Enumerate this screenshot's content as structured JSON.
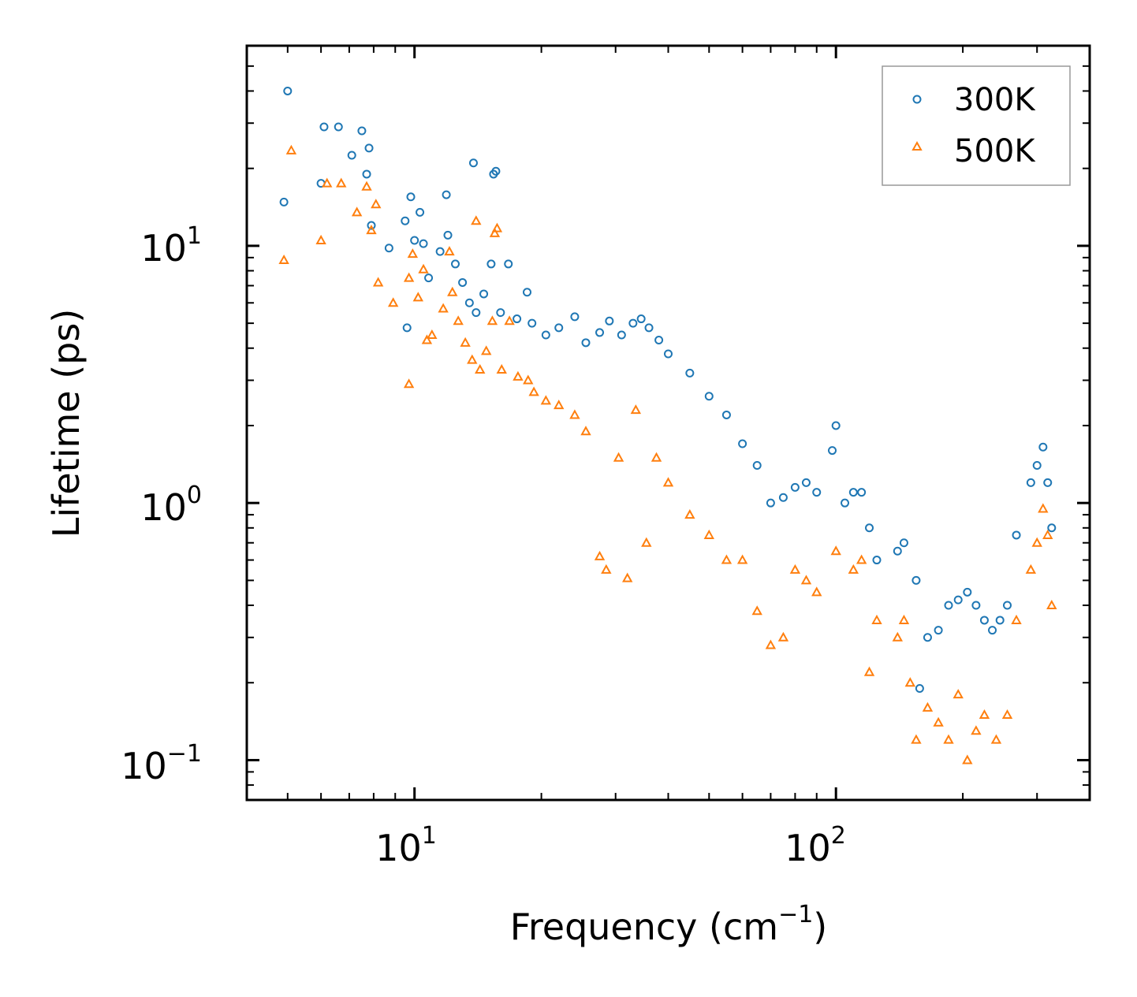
{
  "chart_data": {
    "type": "scatter",
    "title": "",
    "xlabel": "Frequency (cm",
    "xlabel_exp": "−1",
    "xlabel_tail": ")",
    "ylabel": "Lifetime (ps)",
    "xscale": "log",
    "yscale": "log",
    "xlim": [
      4.0,
      400.0
    ],
    "ylim": [
      0.07,
      60.0
    ],
    "x_ticks": [
      {
        "value": 10,
        "base": "10",
        "exp": "1"
      },
      {
        "value": 100,
        "base": "10",
        "exp": "2"
      }
    ],
    "y_ticks": [
      {
        "value": 0.1,
        "base": "10",
        "exp": "−1"
      },
      {
        "value": 1,
        "base": "10",
        "exp": "0"
      },
      {
        "value": 10,
        "base": "10",
        "exp": "1"
      }
    ],
    "legend_position": "top-right",
    "colors": {
      "300K": "#1f77b4",
      "500K": "#ff7f0e"
    },
    "series": [
      {
        "name": "300K",
        "marker": "circle",
        "color": "#1f77b4",
        "points": [
          [
            4.9,
            14.8
          ],
          [
            5.0,
            40.0
          ],
          [
            6.0,
            17.5
          ],
          [
            6.1,
            29.0
          ],
          [
            6.6,
            29.0
          ],
          [
            7.1,
            22.5
          ],
          [
            7.5,
            28.0
          ],
          [
            7.7,
            19.0
          ],
          [
            7.8,
            24.0
          ],
          [
            7.9,
            12.0
          ],
          [
            8.7,
            9.8
          ],
          [
            9.5,
            12.5
          ],
          [
            9.6,
            4.8
          ],
          [
            9.8,
            15.5
          ],
          [
            10.0,
            10.5
          ],
          [
            10.3,
            13.5
          ],
          [
            10.5,
            10.2
          ],
          [
            10.8,
            7.5
          ],
          [
            11.5,
            9.5
          ],
          [
            11.9,
            15.8
          ],
          [
            12.0,
            11.0
          ],
          [
            12.5,
            8.5
          ],
          [
            13.0,
            7.2
          ],
          [
            13.5,
            6.0
          ],
          [
            13.8,
            21.0
          ],
          [
            14.0,
            5.5
          ],
          [
            14.6,
            6.5
          ],
          [
            15.2,
            8.5
          ],
          [
            15.4,
            19.0
          ],
          [
            15.6,
            19.5
          ],
          [
            16.0,
            5.5
          ],
          [
            16.7,
            8.5
          ],
          [
            17.5,
            5.2
          ],
          [
            18.5,
            6.6
          ],
          [
            19.0,
            5.0
          ],
          [
            20.5,
            4.5
          ],
          [
            22.0,
            4.8
          ],
          [
            24.0,
            5.3
          ],
          [
            25.5,
            4.2
          ],
          [
            27.5,
            4.6
          ],
          [
            29.0,
            5.1
          ],
          [
            31.0,
            4.5
          ],
          [
            33.0,
            5.0
          ],
          [
            34.5,
            5.2
          ],
          [
            36.0,
            4.8
          ],
          [
            38.0,
            4.3
          ],
          [
            40.0,
            3.8
          ],
          [
            45.0,
            3.2
          ],
          [
            50.0,
            2.6
          ],
          [
            55.0,
            2.2
          ],
          [
            60.0,
            1.7
          ],
          [
            65.0,
            1.4
          ],
          [
            70.0,
            1.0
          ],
          [
            75.0,
            1.05
          ],
          [
            80.0,
            1.15
          ],
          [
            85.0,
            1.2
          ],
          [
            90.0,
            1.1
          ],
          [
            98.0,
            1.6
          ],
          [
            100.0,
            2.0
          ],
          [
            105.0,
            1.0
          ],
          [
            110.0,
            1.1
          ],
          [
            115.0,
            1.1
          ],
          [
            120.0,
            0.8
          ],
          [
            125.0,
            0.6
          ],
          [
            140.0,
            0.65
          ],
          [
            145.0,
            0.7
          ],
          [
            155.0,
            0.5
          ],
          [
            158.0,
            0.19
          ],
          [
            165.0,
            0.3
          ],
          [
            175.0,
            0.32
          ],
          [
            185.0,
            0.4
          ],
          [
            195.0,
            0.42
          ],
          [
            205.0,
            0.45
          ],
          [
            215.0,
            0.4
          ],
          [
            225.0,
            0.35
          ],
          [
            235.0,
            0.32
          ],
          [
            245.0,
            0.35
          ],
          [
            255.0,
            0.4
          ],
          [
            268.0,
            0.75
          ],
          [
            290.0,
            1.2
          ],
          [
            300.0,
            1.4
          ],
          [
            310.0,
            1.65
          ],
          [
            318.0,
            1.2
          ],
          [
            325.0,
            0.8
          ]
        ]
      },
      {
        "name": "500K",
        "marker": "triangle",
        "color": "#ff7f0e",
        "points": [
          [
            4.9,
            8.8
          ],
          [
            5.1,
            23.5
          ],
          [
            6.0,
            10.5
          ],
          [
            6.2,
            17.5
          ],
          [
            6.7,
            17.5
          ],
          [
            7.3,
            13.5
          ],
          [
            7.7,
            17.0
          ],
          [
            7.9,
            11.5
          ],
          [
            8.1,
            14.5
          ],
          [
            8.2,
            7.2
          ],
          [
            8.9,
            6.0
          ],
          [
            9.7,
            7.5
          ],
          [
            9.7,
            2.9
          ],
          [
            9.9,
            9.3
          ],
          [
            10.2,
            6.3
          ],
          [
            10.5,
            8.1
          ],
          [
            10.7,
            4.3
          ],
          [
            11.0,
            4.5
          ],
          [
            11.7,
            5.7
          ],
          [
            12.1,
            9.5
          ],
          [
            12.3,
            6.6
          ],
          [
            12.7,
            5.1
          ],
          [
            13.2,
            4.2
          ],
          [
            13.7,
            3.6
          ],
          [
            14.0,
            12.5
          ],
          [
            14.3,
            3.3
          ],
          [
            14.8,
            3.9
          ],
          [
            15.3,
            5.1
          ],
          [
            15.5,
            11.2
          ],
          [
            15.7,
            11.7
          ],
          [
            16.1,
            3.3
          ],
          [
            16.8,
            5.1
          ],
          [
            17.6,
            3.1
          ],
          [
            18.6,
            3.0
          ],
          [
            19.2,
            2.7
          ],
          [
            20.5,
            2.5
          ],
          [
            22.0,
            2.4
          ],
          [
            24.0,
            2.2
          ],
          [
            25.5,
            1.9
          ],
          [
            27.5,
            0.62
          ],
          [
            28.5,
            0.55
          ],
          [
            30.5,
            1.5
          ],
          [
            32.0,
            0.51
          ],
          [
            33.5,
            2.3
          ],
          [
            35.5,
            0.7
          ],
          [
            37.5,
            1.5
          ],
          [
            40.0,
            1.2
          ],
          [
            45.0,
            0.9
          ],
          [
            50.0,
            0.75
          ],
          [
            55.0,
            0.6
          ],
          [
            60.0,
            0.6
          ],
          [
            65.0,
            0.38
          ],
          [
            70.0,
            0.28
          ],
          [
            75.0,
            0.3
          ],
          [
            80.0,
            0.55
          ],
          [
            85.0,
            0.5
          ],
          [
            90.0,
            0.45
          ],
          [
            100.0,
            0.65
          ],
          [
            110.0,
            0.55
          ],
          [
            115.0,
            0.6
          ],
          [
            120.0,
            0.22
          ],
          [
            125.0,
            0.35
          ],
          [
            140.0,
            0.3
          ],
          [
            145.0,
            0.35
          ],
          [
            150.0,
            0.2
          ],
          [
            155.0,
            0.12
          ],
          [
            165.0,
            0.16
          ],
          [
            175.0,
            0.14
          ],
          [
            185.0,
            0.12
          ],
          [
            195.0,
            0.18
          ],
          [
            205.0,
            0.1
          ],
          [
            215.0,
            0.13
          ],
          [
            225.0,
            0.15
          ],
          [
            240.0,
            0.12
          ],
          [
            255.0,
            0.15
          ],
          [
            268.0,
            0.35
          ],
          [
            290.0,
            0.55
          ],
          [
            300.0,
            0.7
          ],
          [
            310.0,
            0.95
          ],
          [
            318.0,
            0.75
          ],
          [
            325.0,
            0.4
          ]
        ]
      }
    ]
  }
}
